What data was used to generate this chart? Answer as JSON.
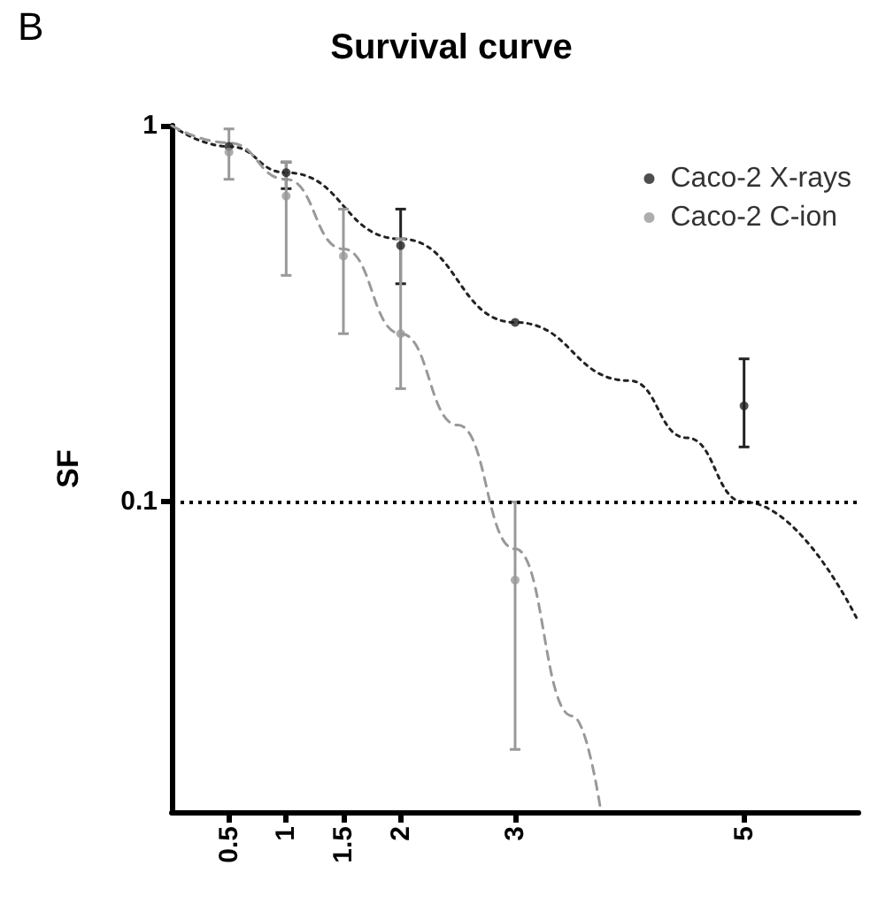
{
  "chart_data": {
    "type": "scatter",
    "title": "Survival curve",
    "ylabel": "SF",
    "annotations": [
      "B"
    ],
    "xlim": [
      0,
      6
    ],
    "xticks": [
      0.5,
      1,
      1.5,
      2,
      3,
      5
    ],
    "ylim": [
      0.015,
      1
    ],
    "yticks": [
      0.1,
      1
    ],
    "log": "y",
    "grid": false,
    "legend": "top right",
    "series": [
      {
        "name": "Caco-2 X-rays",
        "marker": "circle",
        "color": "#222222",
        "x": [
          0.5,
          1,
          2,
          3,
          5
        ],
        "values": [
          0.88,
          0.75,
          0.48,
          0.3,
          0.18
        ],
        "errors": [
          null,
          [
            0.68,
            0.8
          ],
          [
            0.38,
            0.6
          ],
          null,
          [
            0.14,
            0.24
          ]
        ]
      },
      {
        "name": "Caco-2 C-ion",
        "marker": "circle",
        "color": "#999999",
        "x": [
          0.5,
          1,
          1.5,
          2,
          3
        ],
        "values": [
          0.85,
          0.65,
          0.45,
          0.28,
          0.062
        ],
        "errors": [
          [
            0.72,
            0.98
          ],
          [
            0.4,
            0.8
          ],
          [
            0.28,
            0.6
          ],
          [
            0.2,
            0.5
          ],
          [
            0.022,
            0.1
          ]
        ]
      },
      {
        "type": "line",
        "marker": "none",
        "color": "#222222",
        "line_style": "dotted",
        "x": [
          0,
          0.5,
          1,
          2,
          3,
          4,
          4.5,
          5,
          6
        ],
        "values": [
          1,
          0.88,
          0.75,
          0.5,
          0.3,
          0.21,
          0.148,
          0.1,
          0.048
        ]
      },
      {
        "type": "line",
        "marker": "none",
        "color": "#999999",
        "line_style": "dashed",
        "x": [
          0,
          0.5,
          1,
          1.5,
          2,
          2.5,
          3,
          3.5,
          3.75
        ],
        "values": [
          1,
          0.9,
          0.72,
          0.47,
          0.28,
          0.16,
          0.075,
          0.027,
          0.015
        ]
      }
    ],
    "ref_lines": [
      {
        "axis": "y",
        "value": 0.1,
        "color": "#000000",
        "line_style": "dotted"
      }
    ]
  }
}
